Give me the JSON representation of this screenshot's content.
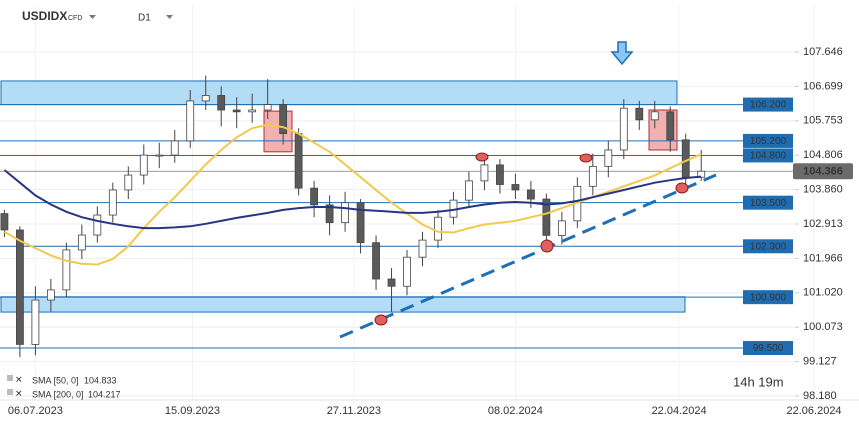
{
  "chart_data": {
    "type": "candlestick",
    "title": "USDIDX",
    "subtitle": "CFD",
    "timeframe": "D1",
    "timer": "14h 19m",
    "up_color": "#ffffff",
    "down_color": "#5a5a5a",
    "x": [
      "2023-06-22",
      "2023-06-29",
      "2023-07-06",
      "2023-07-13",
      "2023-07-20",
      "2023-07-27",
      "2023-08-03",
      "2023-08-10",
      "2023-08-17",
      "2023-08-24",
      "2023-08-31",
      "2023-09-07",
      "2023-09-14",
      "2023-09-21",
      "2023-09-28",
      "2023-10-05",
      "2023-10-12",
      "2023-10-19",
      "2023-10-26",
      "2023-11-02",
      "2023-11-09",
      "2023-11-16",
      "2023-11-23",
      "2023-11-30",
      "2023-12-07",
      "2023-12-14",
      "2023-12-21",
      "2023-12-28",
      "2024-01-04",
      "2024-01-11",
      "2024-01-18",
      "2024-01-25",
      "2024-02-01",
      "2024-02-08",
      "2024-02-15",
      "2024-02-22",
      "2024-02-29",
      "2024-03-07",
      "2024-03-14",
      "2024-03-21",
      "2024-03-28",
      "2024-04-04",
      "2024-04-11",
      "2024-04-18",
      "2024-04-25",
      "2024-05-02"
    ],
    "open": [
      103.2,
      102.75,
      99.6,
      100.82,
      101.1,
      102.2,
      102.61,
      103.16,
      103.85,
      104.26,
      104.81,
      104.81,
      105.2,
      106.3,
      106.45,
      106.05,
      106.0,
      106.05,
      106.2,
      105.4,
      103.9,
      103.44,
      102.95,
      103.5,
      102.4,
      101.4,
      101.2,
      102.0,
      102.47,
      103.1,
      103.57,
      104.1,
      104.54,
      104.0,
      103.85,
      103.6,
      102.6,
      103.0,
      103.95,
      104.5,
      104.95,
      106.1,
      105.78,
      106.0,
      105.23,
      104.2
    ],
    "high": [
      103.3,
      102.85,
      101.2,
      101.4,
      102.4,
      102.9,
      103.4,
      104.05,
      104.5,
      105.1,
      105.15,
      105.5,
      106.6,
      107.0,
      106.7,
      106.4,
      106.5,
      106.9,
      106.35,
      105.55,
      104.1,
      103.7,
      103.8,
      103.6,
      102.6,
      101.7,
      102.2,
      102.7,
      103.3,
      103.8,
      104.35,
      104.85,
      104.7,
      104.3,
      104.1,
      103.75,
      103.25,
      104.2,
      104.85,
      105.2,
      106.35,
      106.3,
      106.3,
      106.15,
      105.4,
      104.95
    ],
    "low": [
      102.55,
      99.25,
      99.3,
      100.5,
      100.9,
      101.95,
      102.4,
      102.95,
      103.6,
      104.0,
      104.45,
      104.6,
      105.0,
      106.05,
      105.6,
      105.55,
      105.7,
      105.8,
      105.1,
      103.7,
      103.1,
      102.6,
      102.7,
      102.1,
      101.1,
      100.5,
      100.95,
      101.75,
      102.25,
      102.9,
      103.35,
      103.85,
      103.75,
      103.6,
      103.35,
      102.2,
      102.35,
      102.8,
      103.7,
      104.2,
      104.7,
      105.5,
      105.55,
      104.9,
      103.85,
      104.1
    ],
    "close": [
      102.75,
      99.6,
      100.82,
      101.1,
      102.2,
      102.61,
      103.16,
      103.85,
      104.26,
      104.81,
      104.81,
      105.2,
      106.3,
      106.45,
      106.05,
      106.0,
      106.05,
      106.2,
      105.4,
      103.9,
      103.44,
      102.95,
      103.5,
      102.4,
      101.4,
      101.2,
      102.0,
      102.47,
      103.1,
      103.57,
      104.1,
      104.54,
      104.0,
      103.85,
      103.6,
      102.6,
      103.0,
      103.95,
      104.5,
      104.95,
      106.1,
      105.78,
      106.0,
      105.23,
      104.2,
      104.366
    ],
    "series": [
      {
        "name": "SMA [50, 0]",
        "color": "#f2c94c",
        "values": [
          102.7,
          102.45,
          102.25,
          102.05,
          101.9,
          101.82,
          101.8,
          101.95,
          102.3,
          102.8,
          103.25,
          103.65,
          104.1,
          104.55,
          104.95,
          105.3,
          105.55,
          105.64,
          105.58,
          105.4,
          105.15,
          104.9,
          104.55,
          104.2,
          103.85,
          103.5,
          103.2,
          102.9,
          102.7,
          102.68,
          102.8,
          102.9,
          102.95,
          103.0,
          103.1,
          103.2,
          103.35,
          103.5,
          103.65,
          103.8,
          103.95,
          104.1,
          104.25,
          104.45,
          104.65,
          104.833
        ]
      },
      {
        "name": "SMA [200, 0]",
        "color": "#283583",
        "values": [
          104.4,
          104.05,
          103.7,
          103.45,
          103.25,
          103.1,
          103.0,
          102.92,
          102.85,
          102.8,
          102.8,
          102.82,
          102.85,
          102.92,
          103.0,
          103.08,
          103.15,
          103.22,
          103.3,
          103.35,
          103.38,
          103.38,
          103.35,
          103.3,
          103.28,
          103.25,
          103.22,
          103.22,
          103.25,
          103.3,
          103.38,
          103.45,
          103.5,
          103.52,
          103.5,
          103.45,
          103.48,
          103.55,
          103.65,
          103.75,
          103.85,
          103.95,
          104.05,
          104.12,
          104.18,
          104.217
        ]
      }
    ],
    "xlim": [
      "2023-06-20",
      "2024-07-06"
    ],
    "xticks": [
      {
        "value": "2023-07-06",
        "label": "06.07.2023"
      },
      {
        "value": "2023-09-15",
        "label": "15.09.2023"
      },
      {
        "value": "2023-11-27",
        "label": "27.11.2023"
      },
      {
        "value": "2024-02-08",
        "label": "08.02.2024"
      },
      {
        "value": "2024-04-22",
        "label": "22.04.2024"
      },
      {
        "value": "2024-06-22",
        "label": "22.06.2024"
      }
    ],
    "ylim": [
      98.07,
      108.94
    ],
    "yticks": [
      107.646,
      106.699,
      105.753,
      104.806,
      {
        "value": 103.86,
        "label": "103.860"
      },
      102.913,
      101.966,
      {
        "value": 101.02,
        "label": "101.020"
      },
      100.073,
      99.127,
      {
        "value": 98.18,
        "label": "98.180"
      }
    ],
    "levels": [
      {
        "value": 106.2,
        "label": "106.200"
      },
      {
        "value": 105.2,
        "label": "105.200"
      },
      {
        "value": 104.8,
        "label": "104.800"
      },
      {
        "value": 103.5,
        "label": "103.500"
      },
      {
        "value": 102.3,
        "label": "102.300"
      },
      {
        "value": 100.9,
        "label": "100.900"
      },
      {
        "value": 99.5,
        "label": "99.500"
      }
    ],
    "zones": [
      {
        "from": 106.2,
        "to": 106.85
      },
      {
        "from": 100.49,
        "to": 100.91
      }
    ],
    "boxes": [
      {
        "from": 104.9,
        "to": 106.02
      },
      {
        "from": 104.95,
        "to": 106.05
      }
    ]
  }
}
